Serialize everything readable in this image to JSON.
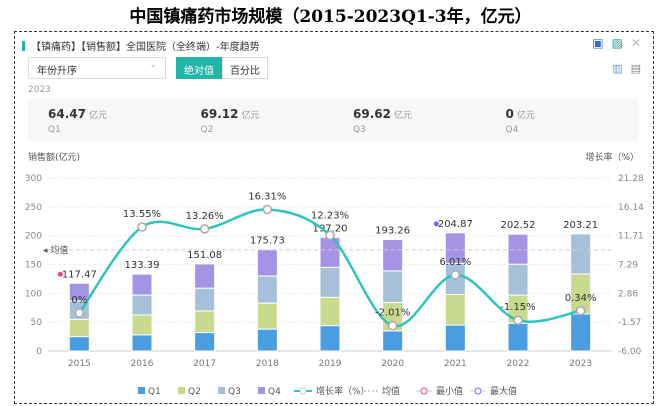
{
  "page_title": "中国镇痛药市场规模（2015-2023Q1-3年，亿元）",
  "panel": {
    "header": "【镇痛药】【销售额】全国医院（全终端）-年度趋势",
    "sort_select": "年份升序",
    "toggle": [
      "绝对值",
      "百分比"
    ],
    "year": "2023",
    "kpis": [
      {
        "value": "64.47",
        "unit": "亿元",
        "label": "Q1"
      },
      {
        "value": "69.12",
        "unit": "亿元",
        "label": "Q2"
      },
      {
        "value": "69.62",
        "unit": "亿元",
        "label": "Q3"
      },
      {
        "value": "0",
        "unit": "亿元",
        "label": "Q4"
      }
    ]
  },
  "chart_data": {
    "type": "bar",
    "stacked": true,
    "ylabel": "销售额(亿元)",
    "y2label": "增长率（%）",
    "ylim": [
      0,
      300
    ],
    "yticks": [
      0,
      50,
      100,
      150,
      200,
      250,
      300
    ],
    "y2lim": [
      -6.0,
      21.28
    ],
    "y2ticks": [
      "-6.00",
      "-1.57",
      "2.86",
      "7.29",
      "11.71",
      "16.14",
      "21.28"
    ],
    "categories": [
      "2015",
      "2016",
      "2017",
      "2018",
      "2019",
      "2020",
      "2021",
      "2022",
      "2023"
    ],
    "series": [
      {
        "name": "Q1",
        "color": "#4a9ee0",
        "values": [
          25,
          28,
          32,
          38,
          44,
          35,
          45,
          48,
          64.47
        ]
      },
      {
        "name": "Q2",
        "color": "#c9d98e",
        "values": [
          30,
          34.5,
          37.5,
          45,
          49,
          49,
          53,
          49,
          69.12
        ]
      },
      {
        "name": "Q3",
        "color": "#a6c0da",
        "values": [
          32,
          34.5,
          39.5,
          47,
          52,
          55,
          54,
          53.5,
          69.62
        ]
      },
      {
        "name": "Q4",
        "color": "#a593e5",
        "values": [
          30.47,
          36.39,
          42.08,
          45.73,
          52.2,
          54.26,
          52.87,
          52.02,
          0
        ]
      }
    ],
    "totals": [
      "117.47",
      "133.39",
      "151.08",
      "175.73",
      "197.20",
      "193.26",
      "204.87",
      "202.52",
      "203.21"
    ],
    "growth": {
      "name": "增长率（%）",
      "color": "#2ec4be",
      "values": [
        0,
        13.55,
        13.26,
        16.31,
        12.23,
        -2.01,
        6.01,
        -1.15,
        0.34
      ],
      "labels": [
        "0%",
        "13.55%",
        "13.26%",
        "16.31%",
        "12.23%",
        "-2.01%",
        "6.01%",
        "-1.15%",
        "0.34%"
      ]
    },
    "average": {
      "name": "均值",
      "value": 175.41,
      "label": "均值"
    },
    "min_marker": {
      "name": "最小值",
      "category": "2015",
      "color": "#f0417a"
    },
    "max_marker": {
      "name": "最大值",
      "category": "2021",
      "color": "#6b6bef"
    },
    "legend": [
      "Q1",
      "Q2",
      "Q3",
      "Q4",
      "增长率（%）",
      "均值",
      "最小值",
      "最大值"
    ],
    "legend_position": "bottom"
  }
}
